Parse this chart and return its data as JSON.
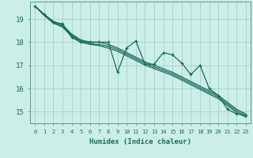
{
  "xlabel": "Humidex (Indice chaleur)",
  "bg_color": "#cceee8",
  "grid_color": "#aad4ce",
  "line_color": "#1a6b5a",
  "xlim": [
    -0.5,
    23.5
  ],
  "ylim": [
    14.5,
    19.75
  ],
  "yticks": [
    15,
    16,
    17,
    18,
    19
  ],
  "xticks": [
    0,
    1,
    2,
    3,
    4,
    5,
    6,
    7,
    8,
    9,
    10,
    11,
    12,
    13,
    14,
    15,
    16,
    17,
    18,
    19,
    20,
    21,
    22,
    23
  ],
  "series": {
    "main": [
      19.55,
      19.2,
      18.85,
      18.8,
      18.2,
      18.0,
      18.0,
      18.0,
      18.0,
      16.7,
      17.75,
      18.05,
      17.05,
      17.05,
      17.55,
      17.45,
      17.1,
      16.6,
      17.0,
      16.0,
      15.7,
      15.1,
      14.9,
      14.85
    ],
    "smooth1": [
      19.55,
      19.2,
      18.9,
      18.75,
      18.35,
      18.1,
      18.0,
      18.0,
      17.9,
      17.75,
      17.55,
      17.35,
      17.15,
      17.0,
      16.85,
      16.7,
      16.5,
      16.3,
      16.1,
      15.9,
      15.7,
      15.4,
      15.1,
      14.9
    ],
    "smooth2": [
      19.55,
      19.18,
      18.86,
      18.7,
      18.3,
      18.05,
      17.95,
      17.9,
      17.82,
      17.68,
      17.48,
      17.28,
      17.08,
      16.93,
      16.78,
      16.63,
      16.43,
      16.23,
      16.03,
      15.83,
      15.63,
      15.33,
      15.03,
      14.83
    ],
    "smooth3": [
      19.55,
      19.15,
      18.82,
      18.65,
      18.25,
      18.0,
      17.9,
      17.85,
      17.74,
      17.61,
      17.41,
      17.21,
      17.01,
      16.86,
      16.71,
      16.56,
      16.36,
      16.16,
      15.96,
      15.76,
      15.56,
      15.26,
      14.96,
      14.76
    ]
  }
}
